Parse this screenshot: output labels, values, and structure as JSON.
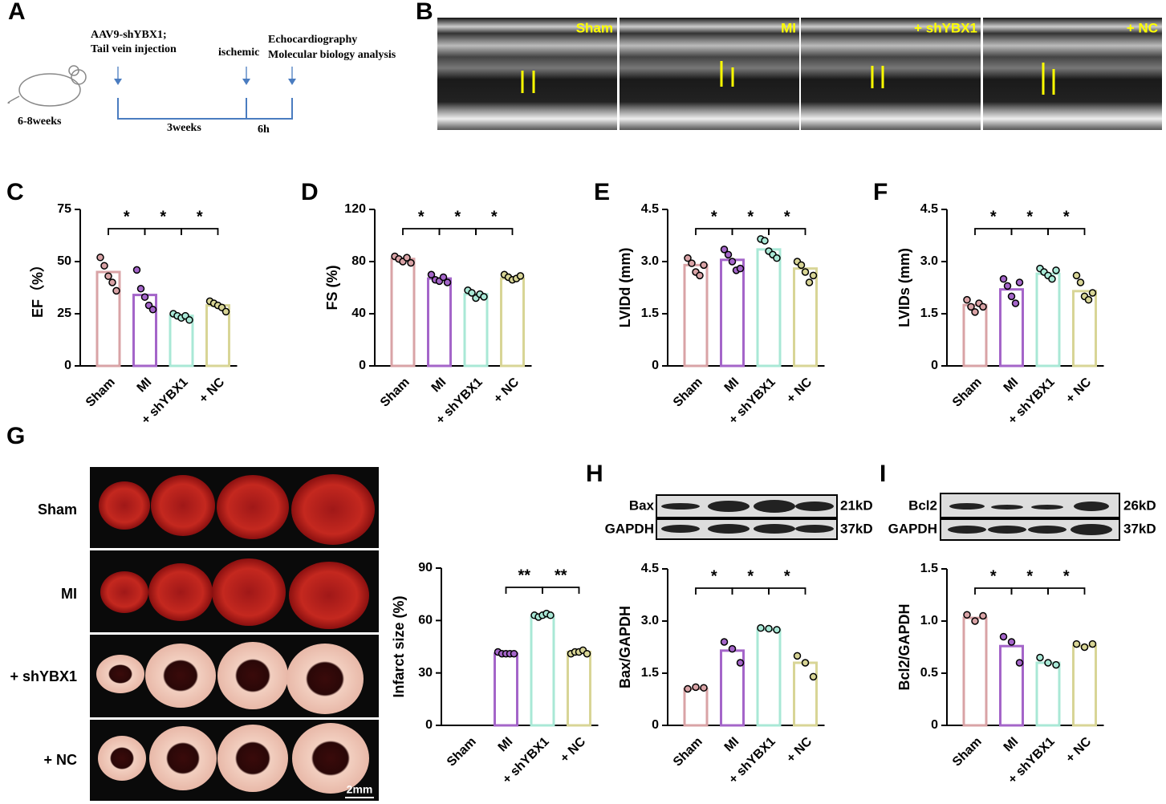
{
  "panels": {
    "a": {
      "letter": "A",
      "injection": [
        "AAV9-shYBX1;",
        "Tail vein injection"
      ],
      "ischemic": "ischemic",
      "analysis": [
        "Echocardiography",
        "Molecular biology analysis"
      ],
      "age": "6-8weeks",
      "period1": "3weeks",
      "period2": "6h"
    },
    "b": {
      "letter": "B",
      "labels": [
        "Sham",
        "MI",
        "+ shYBX1",
        "+ NC"
      ]
    },
    "g": {
      "letter": "G",
      "labels": [
        "Sham",
        "MI",
        "+ shYBX1",
        "+ NC"
      ],
      "scale": "2mm"
    },
    "h": {
      "letter": "H",
      "rows": [
        "Bax",
        "GAPDH"
      ],
      "sizes": [
        "21kD",
        "37kD"
      ]
    },
    "i": {
      "letter": "I",
      "rows": [
        "Bcl2",
        "GAPDH"
      ],
      "sizes": [
        "26kD",
        "37kD"
      ]
    }
  },
  "chart_data": [
    {
      "type": "bar",
      "panel": "C",
      "y_label": "EF（%）",
      "categories": [
        "Sham",
        "MI",
        "+ shYBX1",
        "+ NC"
      ],
      "colors": [
        "#d9a3a6",
        "#a465c9",
        "#a9e8d6",
        "#d8d596"
      ],
      "values": [
        45,
        34,
        24,
        29
      ],
      "points": [
        [
          52,
          48,
          43,
          40,
          36
        ],
        [
          46,
          37,
          33,
          29,
          27
        ],
        [
          25,
          24,
          23,
          24,
          22
        ],
        [
          31,
          30,
          29,
          28,
          26
        ]
      ],
      "ylim": [
        0,
        75
      ],
      "yticks": [
        0,
        25,
        50,
        75
      ],
      "significance": [
        {
          "pair": [
            0,
            1
          ],
          "label": "*"
        },
        {
          "pair": [
            1,
            2
          ],
          "label": "*"
        },
        {
          "pair": [
            2,
            3
          ],
          "label": "*"
        }
      ]
    },
    {
      "type": "bar",
      "panel": "D",
      "y_label": "FS (%)",
      "categories": [
        "Sham",
        "MI",
        "+ shYBX1",
        "+ NC"
      ],
      "colors": [
        "#d9a3a6",
        "#a465c9",
        "#a9e8d6",
        "#d8d596"
      ],
      "values": [
        82,
        67,
        55,
        67
      ],
      "points": [
        [
          84,
          82,
          80,
          83,
          79
        ],
        [
          70,
          66,
          65,
          68,
          64
        ],
        [
          58,
          56,
          52,
          55,
          53
        ],
        [
          70,
          68,
          66,
          67,
          69
        ]
      ],
      "ylim": [
        0,
        120
      ],
      "yticks": [
        0,
        40,
        80,
        120
      ],
      "significance": [
        {
          "pair": [
            0,
            1
          ],
          "label": "*"
        },
        {
          "pair": [
            1,
            2
          ],
          "label": "*"
        },
        {
          "pair": [
            2,
            3
          ],
          "label": "*"
        }
      ]
    },
    {
      "type": "bar",
      "panel": "E",
      "y_label": "LVIDd (mm)",
      "categories": [
        "Sham",
        "MI",
        "+ shYBX1",
        "+ NC"
      ],
      "colors": [
        "#d9a3a6",
        "#a465c9",
        "#a9e8d6",
        "#d8d596"
      ],
      "values": [
        2.9,
        3.05,
        3.35,
        2.8
      ],
      "points": [
        [
          3.1,
          2.95,
          2.7,
          2.6,
          2.9
        ],
        [
          3.35,
          3.2,
          3.0,
          2.75,
          2.8
        ],
        [
          3.65,
          3.6,
          3.3,
          3.2,
          3.1
        ],
        [
          3.0,
          2.9,
          2.7,
          2.4,
          2.6
        ]
      ],
      "ylim": [
        0,
        4.5
      ],
      "yticks": [
        0,
        1.5,
        {
          "value": 3,
          "label": "3.0"
        },
        4.5
      ],
      "significance": [
        {
          "pair": [
            0,
            1
          ],
          "label": "*"
        },
        {
          "pair": [
            1,
            2
          ],
          "label": "*"
        },
        {
          "pair": [
            2,
            3
          ],
          "label": "*"
        }
      ]
    },
    {
      "type": "bar",
      "panel": "F",
      "y_label": "LVIDs (mm)",
      "categories": [
        "Sham",
        "MI",
        "+ shYBX1",
        "+ NC"
      ],
      "colors": [
        "#d9a3a6",
        "#a465c9",
        "#a9e8d6",
        "#d8d596"
      ],
      "values": [
        1.75,
        2.2,
        2.65,
        2.15
      ],
      "points": [
        [
          1.9,
          1.7,
          1.55,
          1.8,
          1.7
        ],
        [
          2.5,
          2.3,
          2.0,
          1.8,
          2.4
        ],
        [
          2.8,
          2.7,
          2.6,
          2.5,
          2.75
        ],
        [
          2.6,
          2.4,
          2.0,
          1.9,
          2.1
        ]
      ],
      "ylim": [
        0,
        4.5
      ],
      "yticks": [
        0,
        1.5,
        {
          "value": 3,
          "label": "3.0"
        },
        4.5
      ],
      "significance": [
        {
          "pair": [
            0,
            1
          ],
          "label": "*"
        },
        {
          "pair": [
            1,
            2
          ],
          "label": "*"
        },
        {
          "pair": [
            2,
            3
          ],
          "label": "*"
        }
      ]
    },
    {
      "type": "bar",
      "y_label": "Infarct size (%)",
      "categories": [
        "Sham",
        "MI",
        "+ shYBX1",
        "+ NC"
      ],
      "colors": [
        "#d9a3a6",
        "#a465c9",
        "#a9e8d6",
        "#d8d596"
      ],
      "values": [
        null,
        41,
        62,
        42
      ],
      "points": [
        [],
        [
          42,
          41,
          41,
          41,
          41
        ],
        [
          63,
          62,
          63,
          64,
          63
        ],
        [
          41,
          42,
          42,
          43,
          41
        ]
      ],
      "ylim": [
        0,
        90
      ],
      "yticks": [
        0,
        30,
        60,
        90
      ],
      "significance": [
        {
          "pair": [
            1,
            2
          ],
          "label": "**"
        },
        {
          "pair": [
            2,
            3
          ],
          "label": "**"
        }
      ]
    },
    {
      "type": "bar",
      "y_label": "Bax/GAPDH",
      "categories": [
        "Sham",
        "MI",
        "+ shYBX1",
        "+ NC"
      ],
      "colors": [
        "#d9a3a6",
        "#a465c9",
        "#a9e8d6",
        "#d8d596"
      ],
      "values": [
        1.05,
        2.15,
        2.75,
        1.8
      ],
      "points": [
        [
          1.05,
          1.1,
          1.08
        ],
        [
          2.4,
          2.2,
          1.8
        ],
        [
          2.8,
          2.78,
          2.75
        ],
        [
          2.0,
          1.8,
          1.4
        ]
      ],
      "ylim": [
        0,
        4.5
      ],
      "yticks": [
        0,
        1.5,
        {
          "value": 3,
          "label": "3.0"
        },
        4.5
      ],
      "significance": [
        {
          "pair": [
            0,
            1
          ],
          "label": "*"
        },
        {
          "pair": [
            1,
            2
          ],
          "label": "*"
        },
        {
          "pair": [
            2,
            3
          ],
          "label": "*"
        }
      ]
    },
    {
      "type": "bar",
      "y_label": "Bcl2/GAPDH",
      "categories": [
        "Sham",
        "MI",
        "+ shYBX1",
        "+ NC"
      ],
      "colors": [
        "#d9a3a6",
        "#a465c9",
        "#a9e8d6",
        "#d8d596"
      ],
      "values": [
        1.03,
        0.76,
        0.6,
        0.76
      ],
      "points": [
        [
          1.06,
          1.0,
          1.05
        ],
        [
          0.85,
          0.8,
          0.6
        ],
        [
          0.65,
          0.6,
          0.58
        ],
        [
          0.78,
          0.75,
          0.78
        ]
      ],
      "ylim": [
        0,
        1.5
      ],
      "yticks": [
        0,
        0.5,
        {
          "value": 1,
          "label": "1.0"
        },
        1.5
      ],
      "significance": [
        {
          "pair": [
            0,
            1
          ],
          "label": "*"
        },
        {
          "pair": [
            1,
            2
          ],
          "label": "*"
        },
        {
          "pair": [
            2,
            3
          ],
          "label": "*"
        }
      ]
    }
  ]
}
